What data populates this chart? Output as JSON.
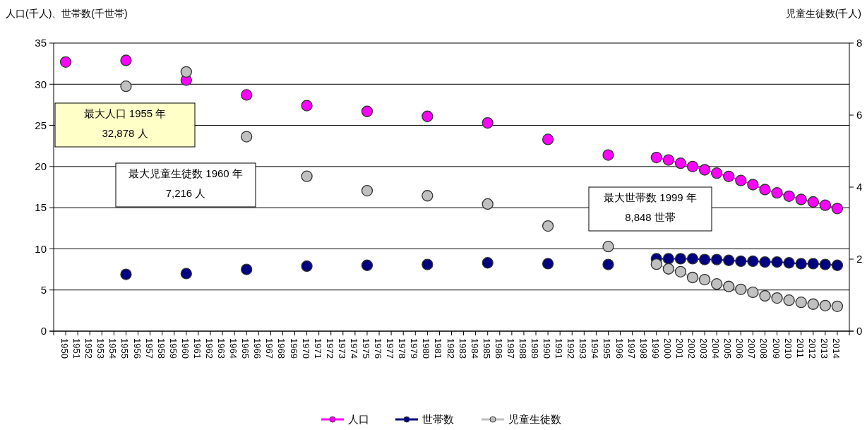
{
  "chart_data": {
    "type": "line",
    "ylabel": "人口(千人)、世帯数(千世帯)",
    "y2label": "児童生徒数(千人)",
    "categories": [
      "1950",
      "1951",
      "1952",
      "1953",
      "1954",
      "1955",
      "1956",
      "1957",
      "1958",
      "1959",
      "1960",
      "1961",
      "1962",
      "1963",
      "1964",
      "1965",
      "1966",
      "1967",
      "1968",
      "1969",
      "1970",
      "1971",
      "1972",
      "1973",
      "1974",
      "1975",
      "1976",
      "1977",
      "1978",
      "1979",
      "1980",
      "1981",
      "1982",
      "1983",
      "1984",
      "1985",
      "1986",
      "1987",
      "1988",
      "1989",
      "1990",
      "1991",
      "1992",
      "1993",
      "1994",
      "1995",
      "1996",
      "1997",
      "1998",
      "1999",
      "2000",
      "2001",
      "2002",
      "2003",
      "2004",
      "2005",
      "2006",
      "2007",
      "2008",
      "2009",
      "2010",
      "2011",
      "2012",
      "2013",
      "2014"
    ],
    "series": [
      {
        "name": "人口",
        "color": "#ff00ff",
        "values": [
          32.7,
          null,
          null,
          null,
          null,
          32.9,
          null,
          null,
          null,
          null,
          30.5,
          null,
          null,
          null,
          null,
          28.7,
          null,
          null,
          null,
          null,
          27.4,
          null,
          null,
          null,
          null,
          26.7,
          null,
          null,
          null,
          null,
          26.1,
          null,
          null,
          null,
          null,
          25.3,
          null,
          null,
          null,
          null,
          23.3,
          null,
          null,
          null,
          null,
          21.4,
          null,
          null,
          null,
          21.1,
          20.8,
          20.4,
          20.0,
          19.6,
          19.2,
          18.8,
          18.3,
          17.8,
          17.2,
          16.8,
          16.4,
          16.0,
          15.7,
          15.3,
          14.9
        ]
      },
      {
        "name": "世帯数",
        "color": "#000080",
        "values": [
          null,
          null,
          null,
          null,
          null,
          6.9,
          null,
          null,
          null,
          null,
          7.0,
          null,
          null,
          null,
          null,
          7.5,
          null,
          null,
          null,
          null,
          7.9,
          null,
          null,
          null,
          null,
          8.0,
          null,
          null,
          null,
          null,
          8.1,
          null,
          null,
          null,
          null,
          8.3,
          null,
          null,
          null,
          null,
          8.2,
          null,
          null,
          null,
          null,
          8.1,
          null,
          null,
          null,
          8.8,
          8.8,
          8.8,
          8.8,
          8.7,
          8.7,
          8.6,
          8.5,
          8.5,
          8.4,
          8.4,
          8.3,
          8.2,
          8.2,
          8.1,
          8.0
        ]
      },
      {
        "name": "児童生徒数",
        "color": "#c0c0c0",
        "axis": "y2",
        "values": [
          null,
          null,
          null,
          null,
          null,
          6.8,
          null,
          null,
          null,
          null,
          7.2,
          null,
          null,
          null,
          null,
          5.4,
          null,
          null,
          null,
          null,
          4.3,
          null,
          null,
          null,
          null,
          3.9,
          null,
          null,
          null,
          null,
          3.76,
          null,
          null,
          null,
          null,
          3.53,
          null,
          null,
          null,
          null,
          2.92,
          null,
          null,
          null,
          null,
          2.35,
          null,
          null,
          null,
          1.86,
          1.73,
          1.65,
          1.49,
          1.43,
          1.31,
          1.24,
          1.16,
          1.08,
          0.98,
          0.92,
          0.86,
          0.8,
          0.75,
          0.71,
          0.69
        ]
      }
    ],
    "ylim": [
      0,
      35
    ],
    "yticks": [
      0,
      5,
      10,
      15,
      20,
      25,
      30,
      35
    ],
    "y2lim": [
      0,
      8
    ],
    "y2ticks": [
      0,
      2,
      4,
      6,
      8
    ],
    "grid": "y",
    "legend": "bottom",
    "marker": "circle",
    "line_style": "solid",
    "annotations": [
      "最大人口 1955 年\n32,878 人",
      "最大児童生徒数 1960 年\n7,216 人",
      "最大世帯数 1999 年\n8,848 世帯"
    ]
  }
}
